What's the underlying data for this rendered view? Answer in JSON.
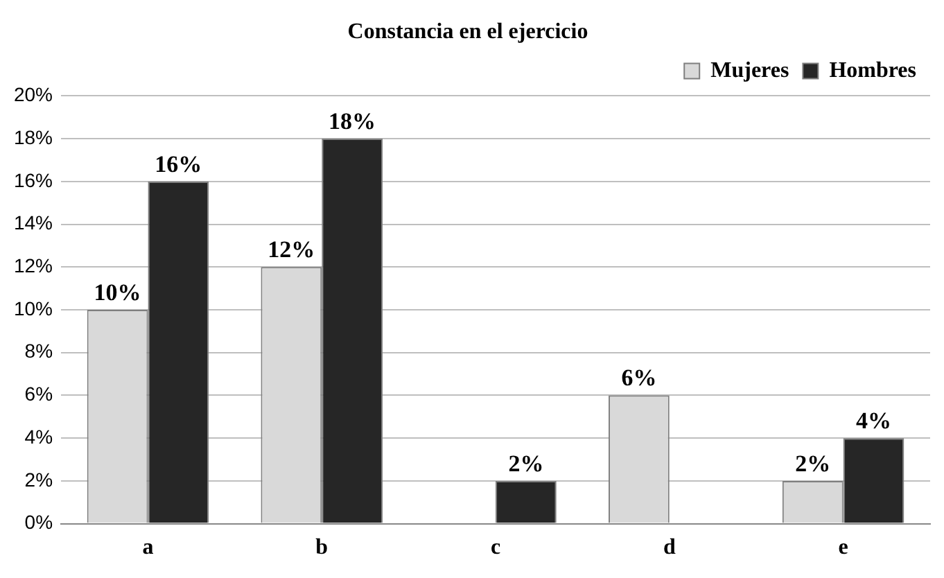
{
  "chart_data": {
    "type": "bar",
    "title": "Constancia en el ejercicio",
    "categories": [
      "a",
      "b",
      "c",
      "d",
      "e"
    ],
    "series": [
      {
        "name": "Mujeres",
        "color": "#d9d9d9",
        "values": [
          10,
          12,
          null,
          6,
          2
        ],
        "value_labels": [
          "10%",
          "12%",
          null,
          "6%",
          "2%"
        ]
      },
      {
        "name": "Hombres",
        "color": "#262626",
        "values": [
          16,
          18,
          2,
          null,
          4
        ],
        "value_labels": [
          "16%",
          "18%",
          "2%",
          null,
          "4%"
        ]
      }
    ],
    "ylim": [
      0,
      20
    ],
    "yticks": [
      {
        "value": 0,
        "label": "0%"
      },
      {
        "value": 2,
        "label": "2%"
      },
      {
        "value": 4,
        "label": "4%"
      },
      {
        "value": 6,
        "label": "6%"
      },
      {
        "value": 8,
        "label": "8%"
      },
      {
        "value": 10,
        "label": "10%"
      },
      {
        "value": 12,
        "label": "12%"
      },
      {
        "value": 14,
        "label": "14%"
      },
      {
        "value": 16,
        "label": "16%"
      },
      {
        "value": 18,
        "label": "18%"
      },
      {
        "value": 20,
        "label": "20%"
      }
    ],
    "grid": "y",
    "legend": "top right"
  }
}
